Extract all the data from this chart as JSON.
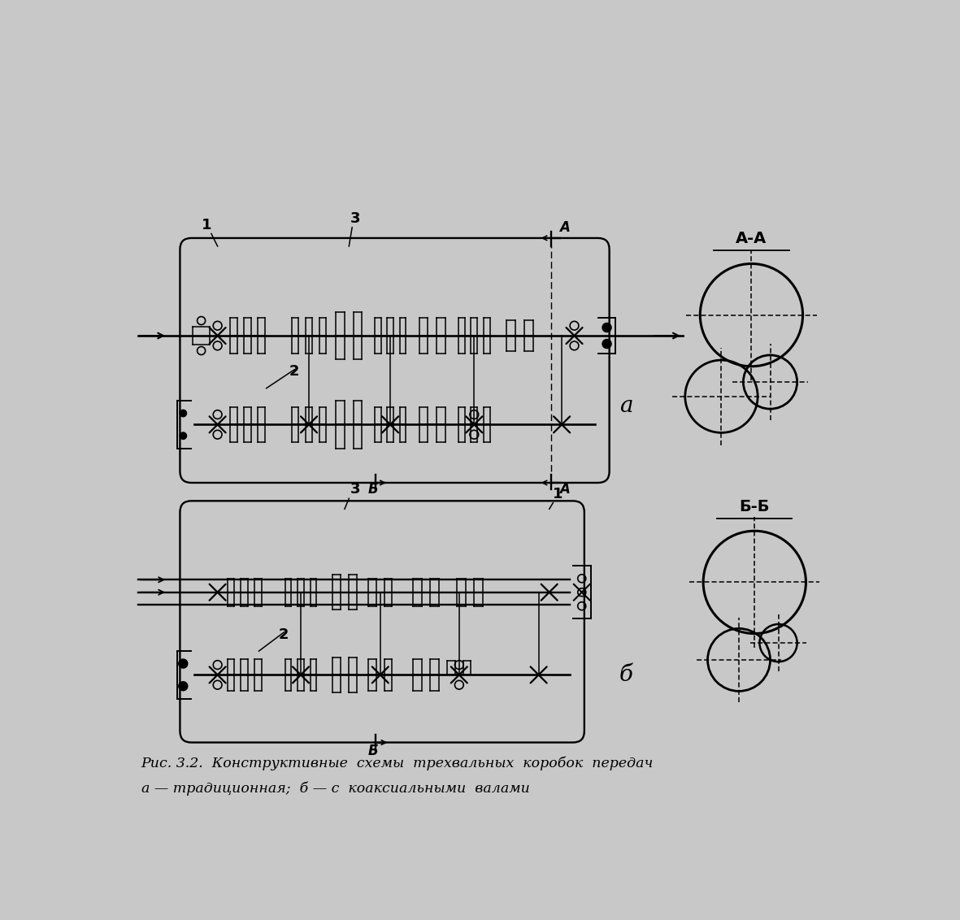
{
  "bg_color": "#c8c8c8",
  "line_color": "#000000",
  "title_line1": "Рис. 3.2.  Конструктивные  схемы  трехвальных  коробок  передач",
  "title_line2": "а — традиционная;  б — с  коаксиальными  валами",
  "label_a": "а",
  "label_b": "б",
  "label_AA": "А-А",
  "label_BB": "Б-Б",
  "label_A": "А",
  "label_B": "Б",
  "num1": "1",
  "num2": "2",
  "num3": "3"
}
